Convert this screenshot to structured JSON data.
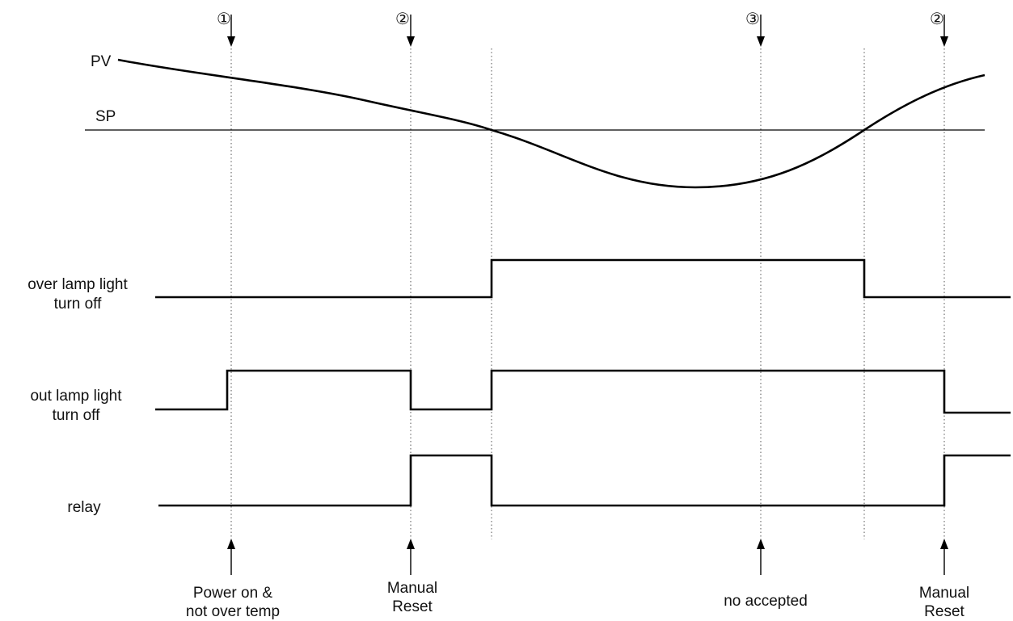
{
  "curve_labels": {
    "pv": "PV",
    "sp": "SP"
  },
  "markers": [
    {
      "id": "m1",
      "symbol": "①"
    },
    {
      "id": "m2",
      "symbol": "②"
    },
    {
      "id": "m3",
      "symbol": "③"
    },
    {
      "id": "m4",
      "symbol": "②"
    }
  ],
  "signals": [
    {
      "id": "over",
      "label_lines": [
        "over lamp light",
        "turn off"
      ]
    },
    {
      "id": "out",
      "label_lines": [
        "out lamp light",
        "turn off"
      ]
    },
    {
      "id": "relay",
      "label_lines": [
        "relay"
      ]
    }
  ],
  "events": [
    {
      "id": "e1",
      "lines": [
        "Power on &",
        "not over temp"
      ]
    },
    {
      "id": "e2",
      "lines": [
        "Manual",
        "Reset"
      ]
    },
    {
      "id": "e3",
      "lines": [
        "no accepted"
      ]
    },
    {
      "id": "e4",
      "lines": [
        "Manual",
        "Reset"
      ]
    }
  ]
}
